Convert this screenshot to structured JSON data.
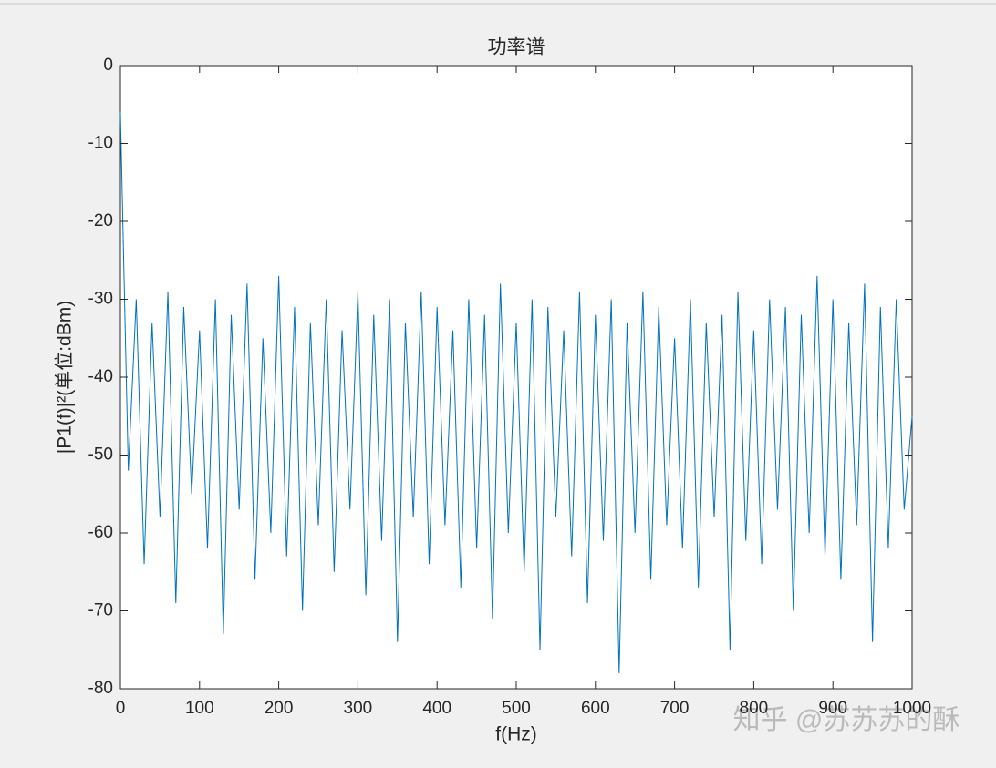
{
  "chart_data": {
    "type": "line",
    "title": "功率谱",
    "xlabel": "f(Hz)",
    "ylabel": "|P1(f)|²(单位:dBm)",
    "watermark": "知乎 @苏苏苏的酥",
    "x": [
      0,
      10,
      20,
      30,
      40,
      50,
      60,
      70,
      80,
      90,
      100,
      110,
      120,
      130,
      140,
      150,
      160,
      170,
      180,
      190,
      200,
      210,
      220,
      230,
      240,
      250,
      260,
      270,
      280,
      290,
      300,
      310,
      320,
      330,
      340,
      350,
      360,
      370,
      380,
      390,
      400,
      410,
      420,
      430,
      440,
      450,
      460,
      470,
      480,
      490,
      500,
      510,
      520,
      530,
      540,
      550,
      560,
      570,
      580,
      590,
      600,
      610,
      620,
      630,
      640,
      650,
      660,
      670,
      680,
      690,
      700,
      710,
      720,
      730,
      740,
      750,
      760,
      770,
      780,
      790,
      800,
      810,
      820,
      830,
      840,
      850,
      860,
      870,
      880,
      890,
      900,
      910,
      920,
      930,
      940,
      950,
      960,
      970,
      980,
      990,
      1000
    ],
    "series": [
      {
        "name": "P1",
        "color": "#0072bd",
        "values": [
          -6,
          -52,
          -30,
          -64,
          -33,
          -58,
          -29,
          -69,
          -31,
          -55,
          -34,
          -62,
          -30,
          -73,
          -32,
          -57,
          -28,
          -66,
          -35,
          -60,
          -27,
          -63,
          -31,
          -70,
          -33,
          -59,
          -30,
          -65,
          -34,
          -57,
          -29,
          -68,
          -32,
          -61,
          -30,
          -74,
          -33,
          -58,
          -29,
          -64,
          -31,
          -59,
          -34,
          -67,
          -30,
          -62,
          -32,
          -71,
          -28,
          -60,
          -33,
          -65,
          -30,
          -75,
          -31,
          -58,
          -34,
          -63,
          -29,
          -69,
          -32,
          -61,
          -30,
          -78,
          -33,
          -60,
          -29,
          -66,
          -31,
          -59,
          -35,
          -62,
          -30,
          -67,
          -33,
          -58,
          -32,
          -75,
          -29,
          -61,
          -34,
          -64,
          -30,
          -57,
          -31,
          -70,
          -32,
          -60,
          -27,
          -63,
          -30,
          -66,
          -33,
          -59,
          -28,
          -74,
          -31,
          -62,
          -30,
          -57,
          -45
        ]
      }
    ],
    "xlim": [
      0,
      1000
    ],
    "xticks": [
      0,
      100,
      200,
      300,
      400,
      500,
      600,
      700,
      800,
      900,
      1000
    ],
    "ylim": [
      -80,
      0
    ],
    "yticks": [
      0,
      -10,
      -20,
      -30,
      -40,
      -50,
      -60,
      -70,
      -80
    ],
    "grid": false
  }
}
